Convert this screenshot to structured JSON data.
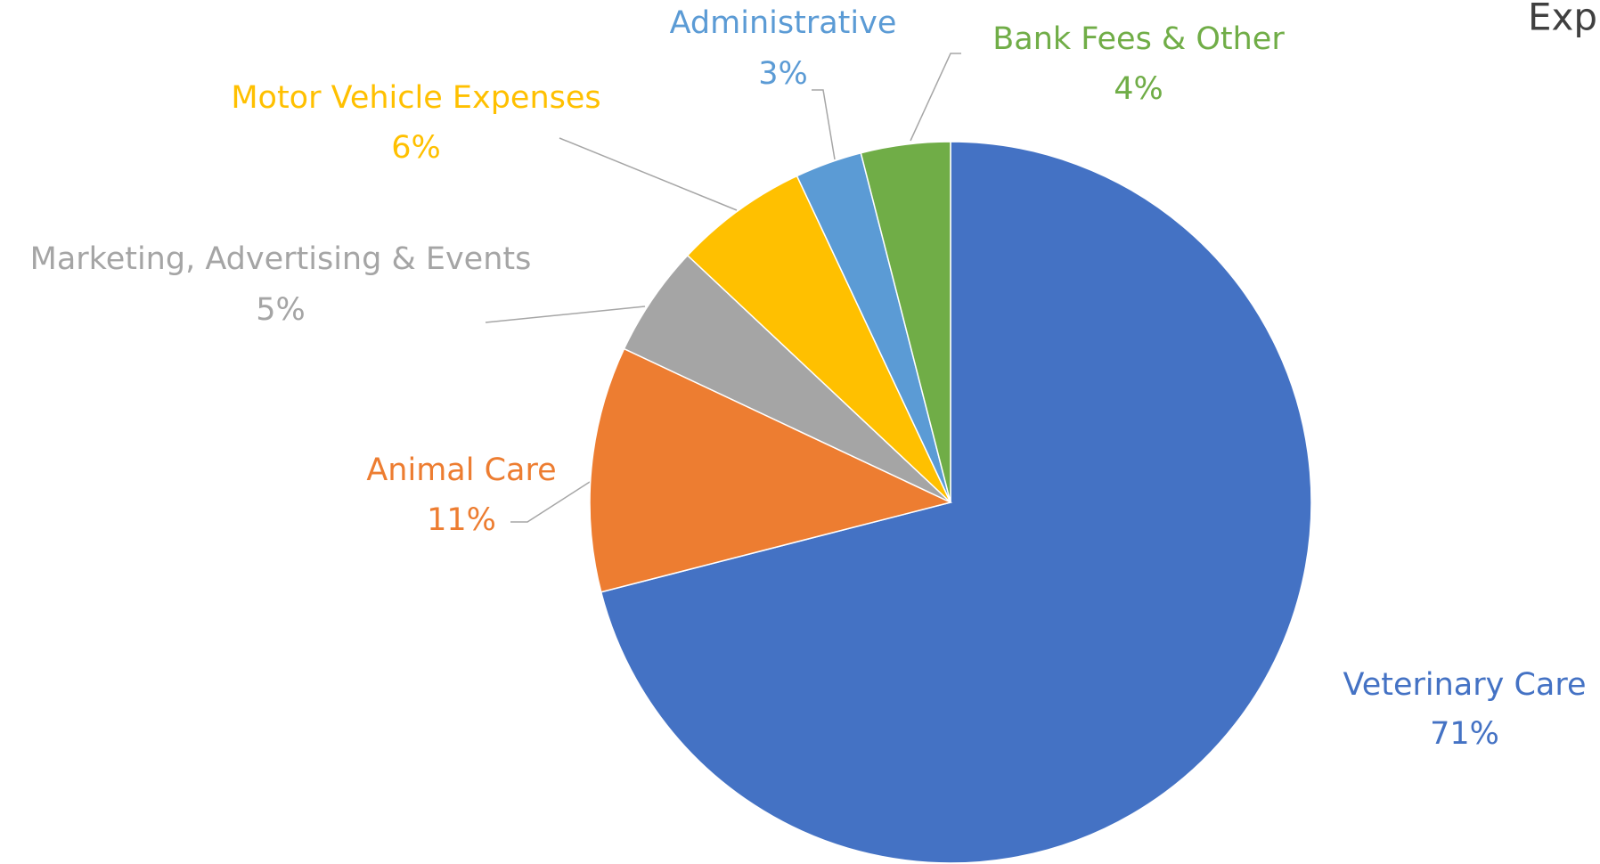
{
  "chart_data": {
    "type": "pie",
    "title": "Exp",
    "categories": [
      "Veterinary Care",
      "Animal Care",
      "Marketing, Advertising & Events",
      "Motor Vehicle Expenses",
      "Administrative",
      "Bank Fees & Other"
    ],
    "values": [
      71,
      11,
      5,
      6,
      3,
      4
    ],
    "value_labels": [
      "71%",
      "11%",
      "5%",
      "6%",
      "3%",
      "4%"
    ],
    "colors": [
      "#4472c4",
      "#ed7d31",
      "#a5a5a5",
      "#ffc000",
      "#5b9bd5",
      "#70ad47"
    ]
  }
}
